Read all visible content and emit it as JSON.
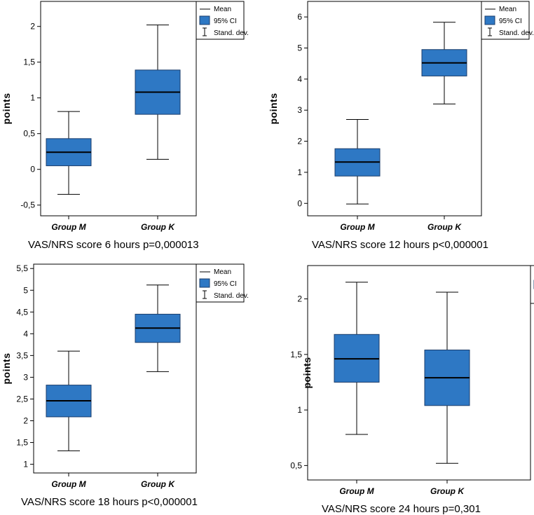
{
  "colors": {
    "box_fill": "#2e78c4",
    "box_edge": "#1b3d6b",
    "frame": "#000000",
    "background": "#ffffff"
  },
  "legend": {
    "mean": "Mean",
    "ci": "95% CI",
    "sd": "Stand. dev."
  },
  "chart_data": [
    {
      "type": "box",
      "caption": "VAS/NRS score 6 hours p=0,000013",
      "ylabel": "points",
      "ylim": [
        -0.65,
        2.35
      ],
      "yticks": [
        -0.5,
        0,
        0.5,
        1,
        1.5,
        2
      ],
      "ytick_labels": [
        "-0,5",
        "0",
        "0,5",
        "1",
        "1,5",
        "2"
      ],
      "categories": [
        "Group M",
        "Group K"
      ],
      "groups": [
        {
          "name": "Group M",
          "mean": 0.24,
          "ci_low": 0.05,
          "ci_high": 0.43,
          "sd_low": -0.35,
          "sd_high": 0.81
        },
        {
          "name": "Group K",
          "mean": 1.08,
          "ci_low": 0.77,
          "ci_high": 1.39,
          "sd_low": 0.14,
          "sd_high": 2.02
        }
      ]
    },
    {
      "type": "box",
      "caption": "VAS/NRS score 12 hours p<0,000001",
      "ylabel": "points",
      "ylim": [
        -0.4,
        6.5
      ],
      "yticks": [
        0,
        1,
        2,
        3,
        4,
        5,
        6
      ],
      "ytick_labels": [
        "0",
        "1",
        "2",
        "3",
        "4",
        "5",
        "6"
      ],
      "categories": [
        "Group M",
        "Group K"
      ],
      "groups": [
        {
          "name": "Group M",
          "mean": 1.33,
          "ci_low": 0.88,
          "ci_high": 1.76,
          "sd_low": -0.02,
          "sd_high": 2.7
        },
        {
          "name": "Group K",
          "mean": 4.52,
          "ci_low": 4.1,
          "ci_high": 4.95,
          "sd_low": 3.2,
          "sd_high": 5.83
        }
      ]
    },
    {
      "type": "box",
      "caption": "VAS/NRS score 18 hours p<0,000001",
      "ylabel": "points",
      "ylim": [
        0.8,
        5.6
      ],
      "yticks": [
        1,
        1.5,
        2,
        2.5,
        3,
        3.5,
        4,
        4.5,
        5,
        5.5
      ],
      "ytick_labels": [
        "1",
        "1,5",
        "2",
        "2,5",
        "3",
        "3,5",
        "4",
        "4,5",
        "5",
        "5,5"
      ],
      "categories": [
        "Group M",
        "Group K"
      ],
      "groups": [
        {
          "name": "Group M",
          "mean": 2.46,
          "ci_low": 2.09,
          "ci_high": 2.82,
          "sd_low": 1.31,
          "sd_high": 3.6
        },
        {
          "name": "Group K",
          "mean": 4.13,
          "ci_low": 3.8,
          "ci_high": 4.45,
          "sd_low": 3.13,
          "sd_high": 5.12
        }
      ]
    },
    {
      "type": "box",
      "caption": "VAS/NRS score 24 hours p=0,301",
      "ylabel": "points",
      "ylim": [
        0.37,
        2.3
      ],
      "yticks": [
        0.5,
        1,
        1.5,
        2
      ],
      "ytick_labels": [
        "0,5",
        "1",
        "1,5",
        "2"
      ],
      "categories": [
        "Group M",
        "Group K"
      ],
      "groups": [
        {
          "name": "Group M",
          "mean": 1.46,
          "ci_low": 1.25,
          "ci_high": 1.68,
          "sd_low": 0.78,
          "sd_high": 2.15
        },
        {
          "name": "Group K",
          "mean": 1.29,
          "ci_low": 1.04,
          "ci_high": 1.54,
          "sd_low": 0.52,
          "sd_high": 2.06
        }
      ]
    }
  ]
}
